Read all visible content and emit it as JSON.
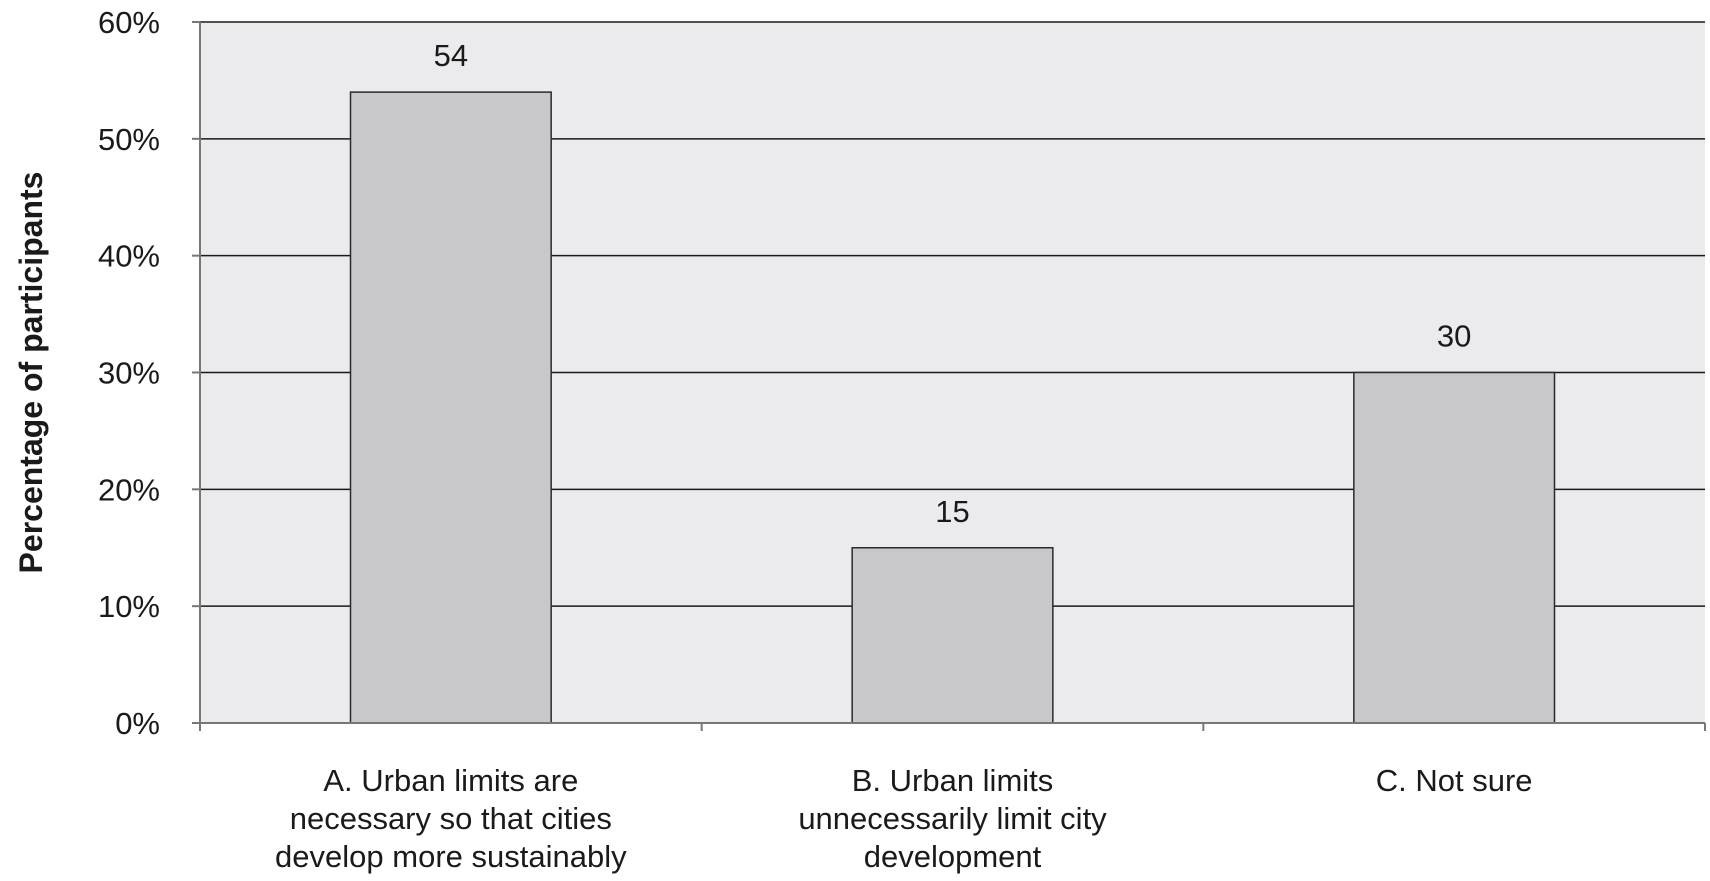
{
  "chart_data": {
    "type": "bar",
    "categories": [
      [
        "A. Urban limits are",
        "necessary so that cities",
        "develop more sustainably"
      ],
      [
        "B. Urban limits",
        "unnecessarily limit city",
        "development"
      ],
      [
        "C. Not sure"
      ]
    ],
    "values": [
      54,
      15,
      30
    ],
    "data_labels": [
      "54",
      "15",
      "30"
    ],
    "title": "",
    "xlabel": "",
    "ylabel": "Percentage of participants",
    "ylim": [
      0,
      60
    ],
    "y_ticks": [
      0,
      10,
      20,
      30,
      40,
      50,
      60
    ],
    "y_tick_labels": [
      "0%",
      "10%",
      "20%",
      "30%",
      "40%",
      "50%",
      "60%"
    ],
    "grid": true,
    "legend": "none",
    "colors": {
      "plot_background": "#ebebed",
      "bar_fill": "#c8c8ca",
      "bar_stroke": "#2a2a2a",
      "gridline": "#1a1a1a",
      "axis": "#777777"
    }
  }
}
